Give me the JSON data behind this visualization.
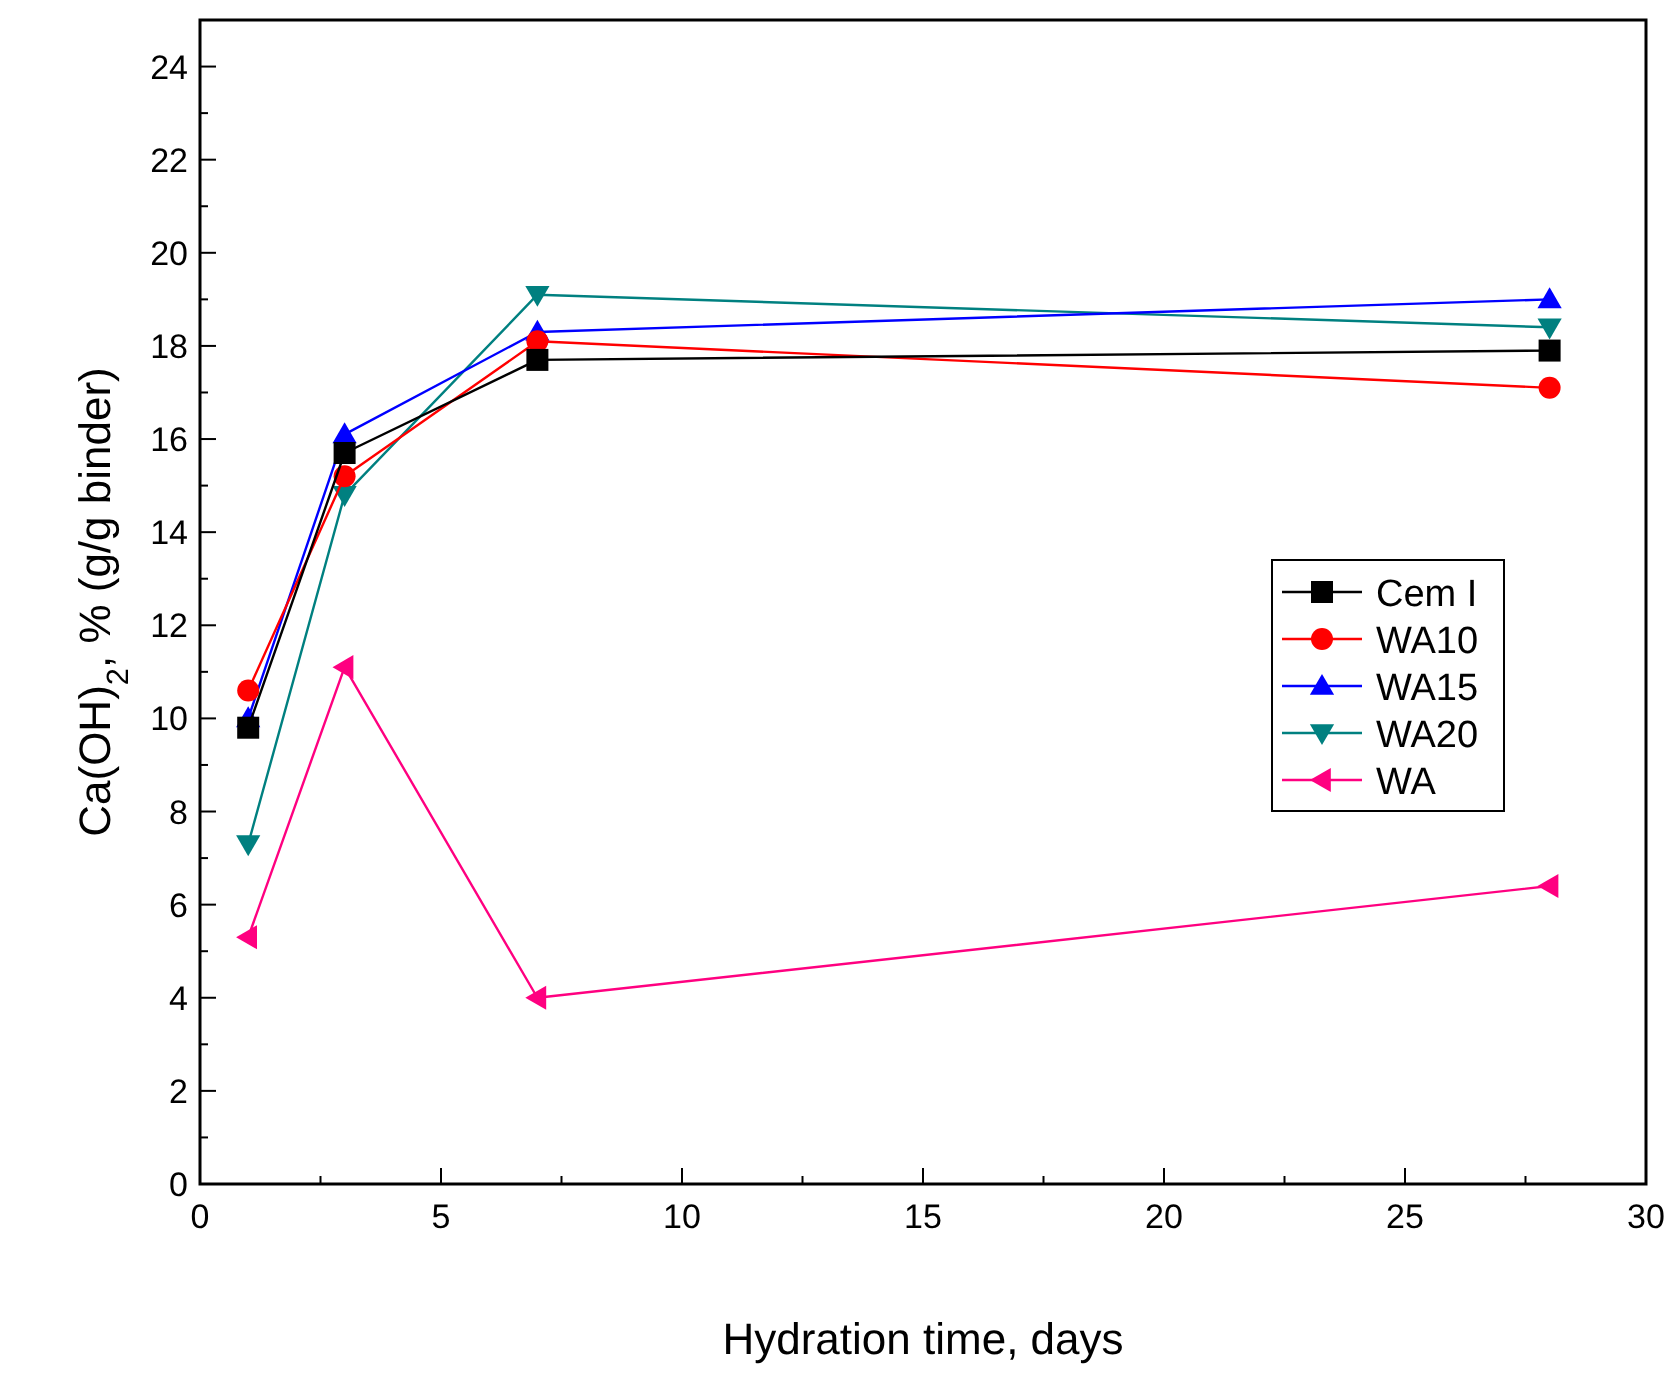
{
  "chart_data": {
    "type": "line",
    "xlabel": "Hydration time, days",
    "ylabel": "Ca(OH)$_{2}$, % (g/g binder)",
    "x": [
      1,
      3,
      7,
      28
    ],
    "xlim": [
      0,
      30
    ],
    "ylim": [
      0,
      25
    ],
    "xticks": [
      0,
      {
        "value": 2.5,
        "label": null
      },
      5,
      {
        "value": 7.5,
        "label": null
      },
      10,
      {
        "value": 12.5,
        "label": null
      },
      15,
      {
        "value": 17.5,
        "label": null
      },
      20,
      {
        "value": 22.5,
        "label": null
      },
      25,
      {
        "value": 27.5,
        "label": null
      },
      30
    ],
    "yticks": [
      0,
      {
        "value": 1,
        "label": null
      },
      2,
      {
        "value": 3,
        "label": null
      },
      4,
      {
        "value": 5,
        "label": null
      },
      6,
      {
        "value": 7,
        "label": null
      },
      8,
      {
        "value": 9,
        "label": null
      },
      10,
      {
        "value": 11,
        "label": null
      },
      12,
      {
        "value": 13,
        "label": null
      },
      14,
      {
        "value": 15,
        "label": null
      },
      16,
      {
        "value": 17,
        "label": null
      },
      18,
      {
        "value": 19,
        "label": null
      },
      20,
      {
        "value": 21,
        "label": null
      },
      22,
      {
        "value": 23,
        "label": null
      },
      24
    ],
    "grid": false,
    "legend": "right",
    "series": [
      {
        "name": "Cem I",
        "color": "#000000",
        "marker": "square",
        "values": [
          9.8,
          15.7,
          17.7,
          17.9
        ]
      },
      {
        "name": "WA10",
        "color": "#ff0000",
        "marker": "circle",
        "values": [
          10.6,
          15.2,
          18.1,
          17.1
        ]
      },
      {
        "name": "WA15",
        "color": "#0000ff",
        "marker": "triangle",
        "values": [
          10.0,
          16.1,
          18.3,
          19.0
        ]
      },
      {
        "name": "WA20",
        "color": "#008080",
        "marker": "triangle-down",
        "values": [
          7.3,
          14.8,
          19.1,
          18.4
        ]
      },
      {
        "name": "WA",
        "color": "#ff0080",
        "marker": "triangle-left",
        "values": [
          5.3,
          11.1,
          4.0,
          6.4
        ]
      }
    ]
  }
}
